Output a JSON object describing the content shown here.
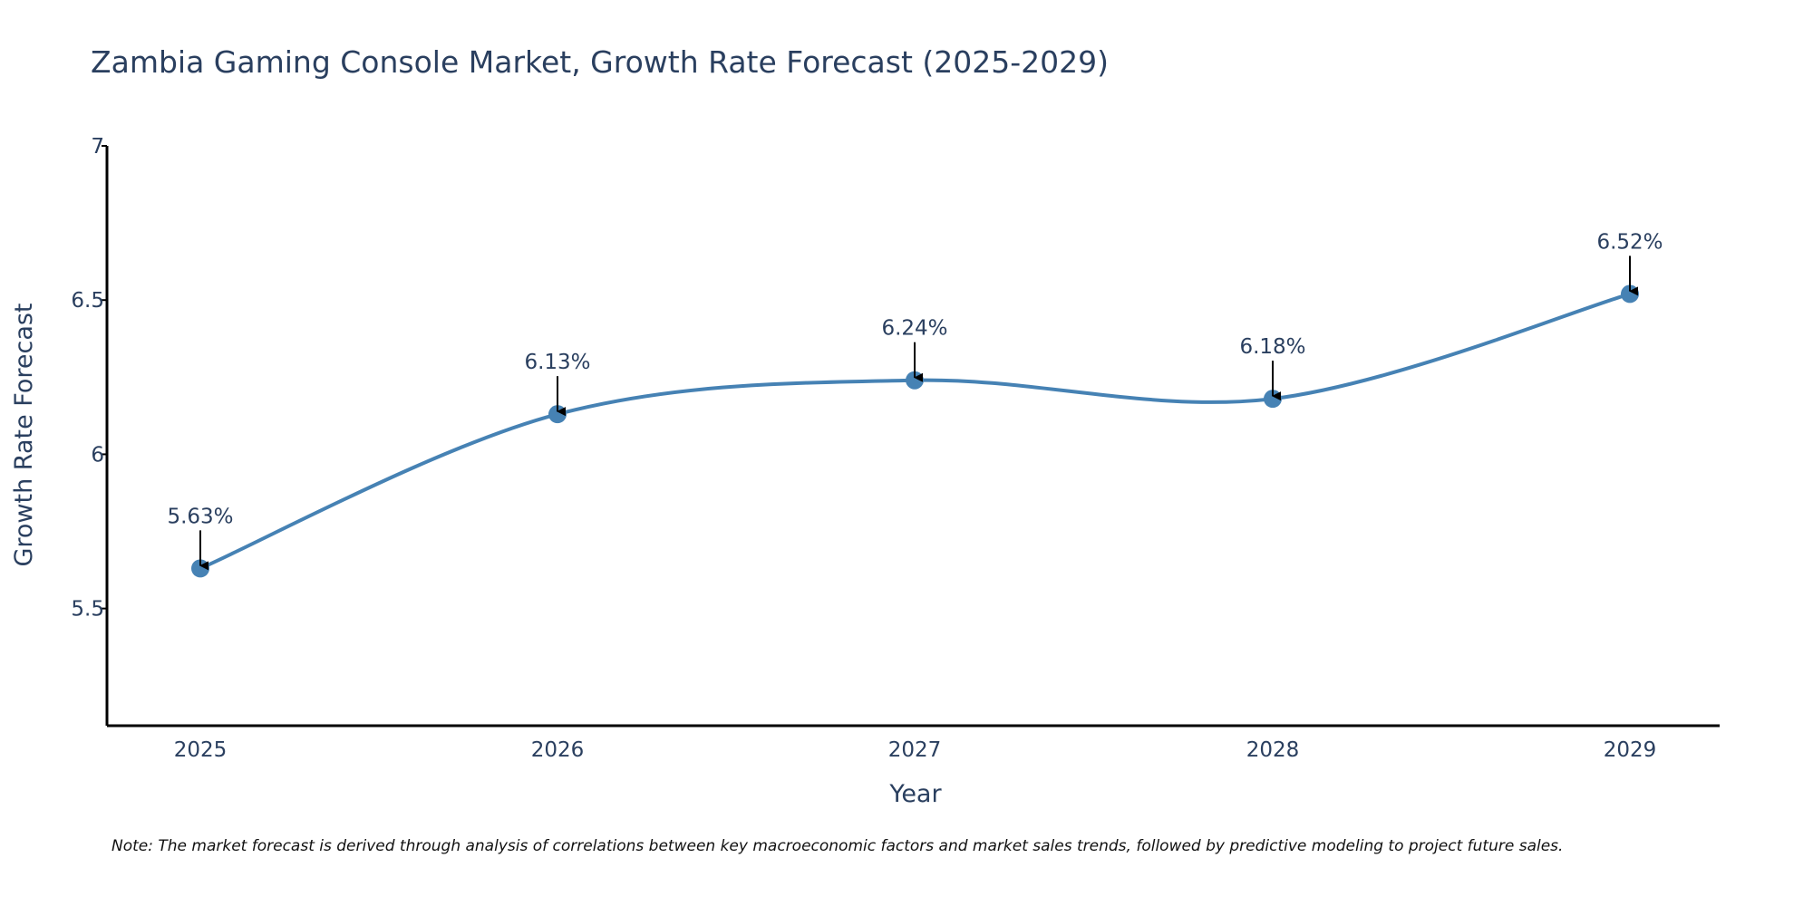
{
  "chart_data": {
    "type": "line",
    "title": "Zambia Gaming Console Market, Growth Rate Forecast (2025-2029)",
    "xlabel": "Year",
    "ylabel": "Growth Rate Forecast",
    "categories": [
      "2025",
      "2026",
      "2027",
      "2028",
      "2029"
    ],
    "series": [
      {
        "name": "Growth Rate Forecast",
        "values": [
          5.63,
          6.13,
          6.24,
          6.18,
          6.52
        ],
        "labels": [
          "5.63%",
          "6.13%",
          "6.24%",
          "6.18%",
          "6.52%"
        ]
      }
    ],
    "ylim": [
      5.12,
      7
    ],
    "yticks": [
      5.5,
      6,
      6.5,
      7
    ],
    "ytick_labels": [
      "5.5",
      "6",
      "6.5",
      "7"
    ],
    "grid": false,
    "line_shape": "spline",
    "colors": {
      "line": "#4682b4",
      "marker": "#4682b4",
      "arrow": "#000000",
      "axis": "#000000",
      "text": "#2a3f5f"
    },
    "note": "Note: The market forecast is derived through analysis of correlations between key macroeconomic factors and market sales trends, followed by predictive modeling to project future sales."
  }
}
